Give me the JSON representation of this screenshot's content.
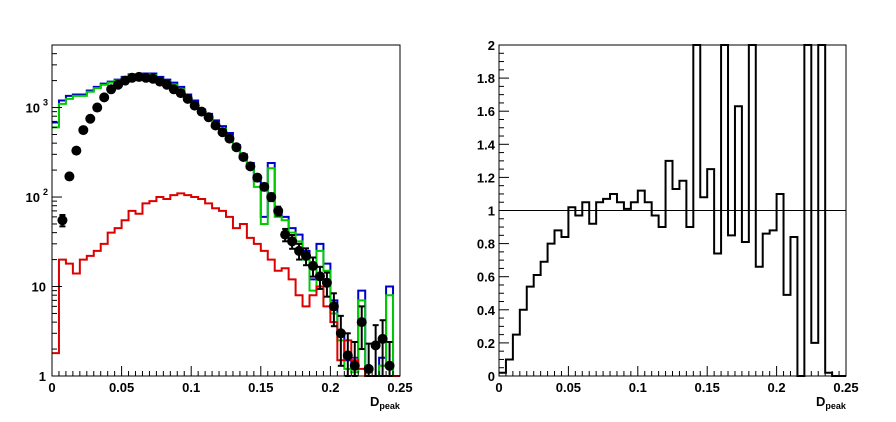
{
  "chart_data": [
    {
      "type": "line",
      "panel": "left",
      "title": "",
      "xlabel": "D",
      "xlabel_sub": "peak",
      "ylabel": "",
      "xlim": [
        0,
        0.25
      ],
      "ylim": [
        1,
        5000
      ],
      "yscale": "log",
      "grid": false,
      "x_ticks": [
        0,
        0.05,
        0.1,
        0.15,
        0.2,
        0.25
      ],
      "x_tick_labels": [
        "0",
        "0.05",
        "0.1",
        "0.15",
        "0.2",
        "0.25"
      ],
      "y_tick_labels": [
        {
          "value": 1,
          "label": "1"
        },
        {
          "value": 10,
          "label": "10"
        },
        {
          "value": 100,
          "label": "10",
          "sup": "2"
        },
        {
          "value": 1000,
          "label": "10",
          "sup": "3"
        }
      ],
      "bin_width": 0.005,
      "series": [
        {
          "color": "#0000cc",
          "style": "step",
          "values": [
            680,
            1200,
            1350,
            1400,
            1400,
            1550,
            1700,
            1850,
            1950,
            2050,
            2200,
            2350,
            2350,
            2400,
            2400,
            2200,
            2050,
            1900,
            1700,
            1400,
            1200,
            950,
            850,
            720,
            620,
            520,
            380,
            300,
            240,
            150,
            60,
            240,
            70,
            60,
            45,
            38,
            25,
            12,
            30,
            18,
            7,
            3,
            1.5,
            1.4,
            9,
            1,
            1,
            1.6,
            10,
            1
          ]
        },
        {
          "color": "#00cc00",
          "style": "step",
          "values": [
            600,
            1100,
            1250,
            1350,
            1350,
            1500,
            1650,
            1800,
            1900,
            2000,
            2150,
            2300,
            2300,
            2350,
            2300,
            2100,
            1950,
            1800,
            1600,
            1300,
            1100,
            870,
            780,
            670,
            580,
            480,
            340,
            270,
            210,
            130,
            50,
            210,
            60,
            55,
            40,
            32,
            20,
            9,
            25,
            15,
            5,
            2.5,
            1.2,
            1.1,
            7,
            1,
            1,
            1.3,
            8,
            1
          ]
        },
        {
          "color": "#660099",
          "style": "step",
          "values": [
            null,
            null,
            null,
            null,
            null,
            null,
            null,
            null,
            null,
            null,
            null,
            null,
            null,
            null,
            null,
            null,
            null,
            null,
            null,
            null,
            null,
            null,
            null,
            null,
            null,
            null,
            null,
            null,
            null,
            null,
            null,
            null,
            null,
            null,
            null,
            null,
            null,
            null,
            null,
            null,
            null,
            null,
            1.6,
            1.6,
            null,
            null,
            null,
            null,
            null,
            null
          ]
        },
        {
          "color": "#dd0000",
          "style": "step",
          "values": [
            1.8,
            20,
            18,
            14,
            20,
            22,
            25,
            30,
            40,
            45,
            55,
            70,
            65,
            85,
            90,
            100,
            95,
            105,
            110,
            105,
            100,
            95,
            85,
            75,
            70,
            60,
            45,
            50,
            35,
            30,
            25,
            20,
            15,
            16,
            12,
            8,
            6,
            8,
            10,
            6,
            4,
            1.5,
            2.5,
            1.5,
            1.2,
            1,
            1,
            1,
            1,
            1
          ]
        },
        {
          "color": "#000000",
          "style": "markers",
          "name": "",
          "x": [
            0.0075,
            0.0125,
            0.0175,
            0.0225,
            0.0275,
            0.0325,
            0.0375,
            0.0425,
            0.0475,
            0.0525,
            0.0575,
            0.0625,
            0.0675,
            0.0725,
            0.0775,
            0.0825,
            0.0875,
            0.0925,
            0.0975,
            0.1025,
            0.1075,
            0.1125,
            0.1175,
            0.1225,
            0.1275,
            0.1325,
            0.1375,
            0.1425,
            0.1475,
            0.1525,
            0.1575,
            0.1625,
            0.1675,
            0.1725,
            0.1775,
            0.1825,
            0.1875,
            0.1925,
            0.1975,
            0.2025,
            0.2075,
            0.2125,
            0.2175,
            0.2225,
            0.2275,
            0.2325,
            0.2375,
            0.2425
          ],
          "y": [
            55,
            170,
            330,
            560,
            750,
            1000,
            1300,
            1600,
            1800,
            2000,
            2150,
            2200,
            2150,
            2100,
            1950,
            1800,
            1600,
            1450,
            1250,
            1050,
            900,
            780,
            630,
            530,
            450,
            360,
            280,
            220,
            165,
            130,
            100,
            70,
            38,
            32,
            25,
            22,
            17,
            13,
            11,
            6,
            3,
            1.7,
            1.3,
            4,
            1.2,
            2.2,
            2.6,
            1.3
          ],
          "err": [
            8,
            13,
            18,
            24,
            27,
            32,
            36,
            40,
            42,
            45,
            46,
            47,
            46,
            46,
            44,
            42,
            40,
            38,
            35,
            32,
            30,
            28,
            25,
            23,
            21,
            19,
            17,
            15,
            13,
            11,
            10,
            8,
            6,
            5.6,
            5,
            4.7,
            4.1,
            3.6,
            3.3,
            2.4,
            1.7,
            1.3,
            1.1,
            2,
            1.1,
            1.5,
            1.6,
            1.1
          ]
        }
      ]
    },
    {
      "type": "line",
      "panel": "right",
      "title": "",
      "xlabel": "D",
      "xlabel_sub": "peak",
      "ylabel": "",
      "xlim": [
        0,
        0.25
      ],
      "ylim": [
        0,
        2
      ],
      "grid": false,
      "reference_line": 1,
      "x_ticks": [
        0,
        0.05,
        0.1,
        0.15,
        0.2,
        0.25
      ],
      "x_tick_labels": [
        "0",
        "0.05",
        "0.1",
        "0.15",
        "0.2",
        "0.25"
      ],
      "y_ticks": [
        0,
        0.2,
        0.4,
        0.6,
        0.8,
        1,
        1.2,
        1.4,
        1.6,
        1.8,
        2
      ],
      "y_tick_labels": [
        "0",
        "0.2",
        "0.4",
        "0.6",
        "0.8",
        "1",
        "1.2",
        "1.4",
        "1.6",
        "1.8",
        "2"
      ],
      "bin_width": 0.005,
      "series": [
        {
          "color": "#000000",
          "style": "step",
          "values": [
            0.02,
            0.1,
            0.25,
            0.4,
            0.54,
            0.61,
            0.69,
            0.8,
            0.88,
            0.84,
            1.02,
            0.97,
            1.05,
            0.92,
            1.05,
            1.07,
            1.1,
            1.05,
            1.01,
            1.05,
            1.12,
            1.05,
            0.97,
            0.9,
            1.3,
            1.13,
            1.18,
            0.9,
            2,
            1.08,
            1.25,
            0.74,
            2,
            0.85,
            1.63,
            0.81,
            2,
            0.66,
            0.86,
            0.88,
            1.1,
            0.49,
            0.84,
            0,
            2,
            0.2,
            2,
            0.02,
            0,
            0
          ]
        }
      ]
    }
  ]
}
